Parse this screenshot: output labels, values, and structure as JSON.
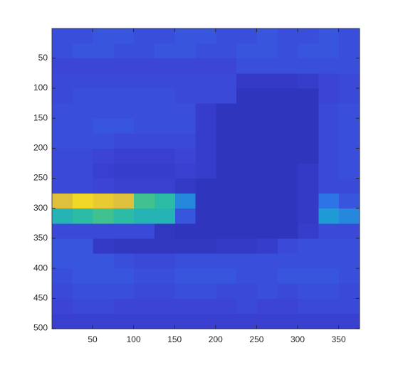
{
  "chart_data": {
    "type": "image",
    "xlim": [
      0.5,
      375.5
    ],
    "ylim": [
      0.5,
      500.5
    ],
    "y_reversed": true,
    "xticks": [
      50,
      100,
      150,
      200,
      250,
      300,
      350
    ],
    "yticks": [
      50,
      100,
      150,
      200,
      250,
      300,
      350,
      400,
      450,
      500
    ],
    "clim": [
      0,
      1
    ],
    "colormap": [
      "#2a2db0",
      "#3c44d6",
      "#2f6fe8",
      "#1aa6d0",
      "#2fbf9c",
      "#8ccb5e",
      "#e3bf3b",
      "#f9e51c"
    ],
    "z": [
      [
        0.18,
        0.18,
        0.2,
        0.2,
        0.18,
        0.18,
        0.2,
        0.2,
        0.18,
        0.18,
        0.2,
        0.18,
        0.18,
        0.2,
        0.18
      ],
      [
        0.18,
        0.2,
        0.2,
        0.18,
        0.18,
        0.2,
        0.2,
        0.18,
        0.18,
        0.2,
        0.2,
        0.18,
        0.2,
        0.2,
        0.18
      ],
      [
        0.15,
        0.15,
        0.15,
        0.15,
        0.15,
        0.15,
        0.15,
        0.15,
        0.15,
        0.18,
        0.18,
        0.18,
        0.18,
        0.18,
        0.18
      ],
      [
        0.16,
        0.16,
        0.16,
        0.16,
        0.16,
        0.16,
        0.16,
        0.16,
        0.16,
        0.08,
        0.08,
        0.08,
        0.1,
        0.14,
        0.16
      ],
      [
        0.16,
        0.18,
        0.18,
        0.18,
        0.18,
        0.18,
        0.16,
        0.16,
        0.16,
        0.05,
        0.05,
        0.05,
        0.05,
        0.14,
        0.16
      ],
      [
        0.18,
        0.18,
        0.18,
        0.18,
        0.18,
        0.18,
        0.18,
        0.1,
        0.05,
        0.05,
        0.05,
        0.05,
        0.05,
        0.16,
        0.18
      ],
      [
        0.18,
        0.18,
        0.2,
        0.2,
        0.18,
        0.18,
        0.18,
        0.1,
        0.05,
        0.05,
        0.05,
        0.05,
        0.05,
        0.16,
        0.18
      ],
      [
        0.18,
        0.18,
        0.18,
        0.16,
        0.16,
        0.16,
        0.16,
        0.1,
        0.05,
        0.05,
        0.05,
        0.05,
        0.05,
        0.16,
        0.18
      ],
      [
        0.16,
        0.16,
        0.14,
        0.12,
        0.12,
        0.12,
        0.14,
        0.1,
        0.05,
        0.05,
        0.05,
        0.05,
        0.05,
        0.16,
        0.18
      ],
      [
        0.16,
        0.16,
        0.12,
        0.1,
        0.1,
        0.1,
        0.12,
        0.1,
        0.05,
        0.05,
        0.05,
        0.05,
        0.08,
        0.16,
        0.18
      ],
      [
        0.16,
        0.16,
        0.14,
        0.12,
        0.12,
        0.12,
        0.08,
        0.05,
        0.05,
        0.05,
        0.05,
        0.05,
        0.08,
        0.16,
        0.16
      ],
      [
        0.85,
        0.95,
        0.9,
        0.85,
        0.6,
        0.55,
        0.35,
        0.05,
        0.05,
        0.05,
        0.05,
        0.05,
        0.08,
        0.3,
        0.2
      ],
      [
        0.5,
        0.55,
        0.6,
        0.55,
        0.5,
        0.5,
        0.2,
        0.05,
        0.05,
        0.05,
        0.05,
        0.05,
        0.08,
        0.4,
        0.35
      ],
      [
        0.16,
        0.16,
        0.16,
        0.16,
        0.16,
        0.06,
        0.05,
        0.05,
        0.05,
        0.05,
        0.05,
        0.05,
        0.1,
        0.16,
        0.16
      ],
      [
        0.2,
        0.2,
        0.08,
        0.06,
        0.06,
        0.06,
        0.06,
        0.06,
        0.08,
        0.08,
        0.1,
        0.16,
        0.18,
        0.18,
        0.18
      ],
      [
        0.2,
        0.2,
        0.2,
        0.18,
        0.16,
        0.16,
        0.18,
        0.18,
        0.18,
        0.18,
        0.18,
        0.18,
        0.18,
        0.18,
        0.18
      ],
      [
        0.18,
        0.2,
        0.2,
        0.2,
        0.18,
        0.18,
        0.2,
        0.2,
        0.2,
        0.18,
        0.18,
        0.2,
        0.2,
        0.2,
        0.18
      ],
      [
        0.16,
        0.18,
        0.18,
        0.18,
        0.16,
        0.16,
        0.18,
        0.18,
        0.16,
        0.16,
        0.18,
        0.16,
        0.18,
        0.18,
        0.16
      ],
      [
        0.14,
        0.16,
        0.16,
        0.14,
        0.14,
        0.14,
        0.14,
        0.14,
        0.14,
        0.16,
        0.14,
        0.14,
        0.16,
        0.16,
        0.16
      ],
      [
        0.12,
        0.12,
        0.12,
        0.12,
        0.12,
        0.12,
        0.12,
        0.12,
        0.12,
        0.12,
        0.12,
        0.12,
        0.12,
        0.12,
        0.12
      ]
    ]
  }
}
